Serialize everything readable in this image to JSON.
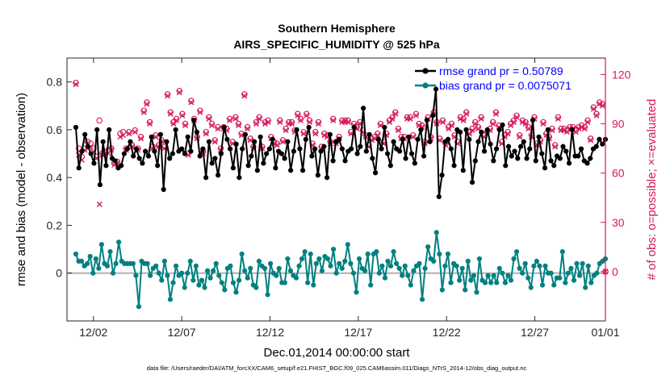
{
  "chart_data": {
    "type": "line",
    "title": "Southern Hemisphere",
    "subtitle": "AIRS_SPECIFIC_HUMIDITY @ 525 hPa",
    "xlabel": "Dec.01,2014 00:00:00 start",
    "ylabel_left": "rmse and bias (model - observation)",
    "ylabel_right": "# of obs: o=possible; ×=evaluated",
    "xlim": [
      0.5,
      31.0
    ],
    "ylim_left": [
      -0.2,
      0.9
    ],
    "ylim_right": [
      -30,
      130
    ],
    "x_ticks": [
      {
        "x": 2,
        "label": "12/02"
      },
      {
        "x": 7,
        "label": "12/07"
      },
      {
        "x": 12,
        "label": "12/12"
      },
      {
        "x": 17,
        "label": "12/17"
      },
      {
        "x": 22,
        "label": "12/22"
      },
      {
        "x": 27,
        "label": "12/27"
      },
      {
        "x": 31,
        "label": "01/01"
      }
    ],
    "y_ticks_left": [
      {
        "v": 0,
        "label": "0"
      },
      {
        "v": 0.2,
        "label": "0.2"
      },
      {
        "v": 0.4,
        "label": "0.4"
      },
      {
        "v": 0.6,
        "label": "0.6"
      },
      {
        "v": 0.8,
        "label": "0.8"
      }
    ],
    "y_ticks_right": [
      {
        "v": 0,
        "label": "0"
      },
      {
        "v": 30,
        "label": "30"
      },
      {
        "v": 60,
        "label": "60"
      },
      {
        "v": 90,
        "label": "90"
      },
      {
        "v": 120,
        "label": "120"
      }
    ],
    "grid": false,
    "legend_position": "top-right",
    "colors": {
      "rmse": "#000000",
      "bias": "#008080",
      "obs": "#d6185f",
      "legend_text": "#0000ff",
      "zero_line": "#b0b0b0",
      "right_axis": "#d6185f"
    },
    "series": [
      {
        "name": "rmse grand pr = 0.50789",
        "axis": "left",
        "values": [
          0.61,
          0.44,
          0.51,
          0.58,
          0.53,
          0.5,
          0.46,
          0.6,
          0.37,
          0.55,
          0.45,
          0.6,
          0.48,
          0.47,
          0.44,
          0.45,
          0.5,
          0.52,
          0.55,
          0.49,
          0.52,
          0.48,
          0.46,
          0.51,
          0.49,
          0.57,
          0.51,
          0.45,
          0.58,
          0.35,
          0.55,
          0.48,
          0.5,
          0.6,
          0.51,
          0.52,
          0.5,
          0.57,
          0.51,
          0.64,
          0.59,
          0.49,
          0.52,
          0.4,
          0.55,
          0.46,
          0.48,
          0.41,
          0.5,
          0.61,
          0.56,
          0.52,
          0.44,
          0.54,
          0.4,
          0.52,
          0.58,
          0.45,
          0.49,
          0.55,
          0.43,
          0.57,
          0.46,
          0.5,
          0.52,
          0.56,
          0.44,
          0.51,
          0.5,
          0.48,
          0.55,
          0.43,
          0.51,
          0.6,
          0.52,
          0.43,
          0.56,
          0.61,
          0.49,
          0.52,
          0.41,
          0.51,
          0.53,
          0.4,
          0.58,
          0.47,
          0.55,
          0.56,
          0.52,
          0.47,
          0.51,
          0.52,
          0.61,
          0.5,
          0.53,
          0.69,
          0.51,
          0.58,
          0.48,
          0.42,
          0.56,
          0.52,
          0.61,
          0.5,
          0.45,
          0.55,
          0.52,
          0.51,
          0.56,
          0.48,
          0.57,
          0.5,
          0.46,
          0.56,
          0.6,
          0.49,
          0.64,
          0.55,
          0.66,
          0.77,
          0.32,
          0.41,
          0.55,
          0.56,
          0.52,
          0.45,
          0.6,
          0.59,
          0.43,
          0.6,
          0.56,
          0.38,
          0.47,
          0.55,
          0.59,
          0.51,
          0.6,
          0.54,
          0.47,
          0.52,
          0.6,
          0.62,
          0.45,
          0.53,
          0.49,
          0.51,
          0.48,
          0.53,
          0.55,
          0.48,
          0.52,
          0.64,
          0.47,
          0.57,
          0.5,
          0.44,
          0.6,
          0.47,
          0.45,
          0.49,
          0.48,
          0.53,
          0.51,
          0.46,
          0.6,
          0.49,
          0.49,
          0.52,
          0.47,
          0.46,
          0.48,
          0.52,
          0.53,
          0.56,
          0.54,
          0.56
        ]
      },
      {
        "name": "bias grand pr = 0.0075071",
        "axis": "left",
        "values": [
          0.08,
          0.05,
          0.05,
          0.03,
          0.04,
          0.07,
          0.0,
          0.06,
          0.02,
          0.12,
          0.04,
          0.03,
          0.09,
          0.0,
          0.04,
          0.13,
          0.05,
          0.04,
          0.04,
          0.04,
          0.04,
          -0.01,
          -0.14,
          0.05,
          0.04,
          0.04,
          -0.01,
          0.02,
          0.03,
          0.0,
          -0.03,
          0.05,
          -0.01,
          -0.11,
          -0.04,
          0.03,
          -0.01,
          0.0,
          -0.06,
          0.0,
          0.05,
          -0.03,
          0.03,
          -0.05,
          -0.03,
          -0.06,
          0.01,
          -0.02,
          0.01,
          0.04,
          -0.01,
          -0.04,
          -0.07,
          0.02,
          0.03,
          -0.04,
          -0.08,
          -0.03,
          0.08,
          0.01,
          -0.02,
          0.02,
          -0.05,
          -0.06,
          0.05,
          0.03,
          0.02,
          -0.09,
          0.04,
          0.0,
          -0.01,
          0.02,
          -0.04,
          -0.04,
          0.06,
          0.01,
          -0.01,
          -0.02,
          0.03,
          0.06,
          0.09,
          -0.04,
          0.08,
          -0.05,
          0.04,
          0.06,
          0.01,
          0.07,
          0.06,
          0.03,
          0.1,
          0.0,
          0.04,
          0.02,
          0.05,
          0.12,
          0.04,
          0.0,
          -0.08,
          0.06,
          0.02,
          0.01,
          0.08,
          -0.05,
          0.08,
          0.09,
          0.0,
          0.03,
          -0.02,
          0.05,
          0.03,
          0.09,
          0.04,
          0.02,
          -0.01,
          0.03,
          -0.01,
          -0.05,
          0.01,
          0.03,
          0.04,
          -0.11,
          0.02,
          0.11,
          0.06,
          0.05,
          0.17,
          0.08,
          -0.07,
          0.03,
          0.08,
          -0.04,
          0.04,
          0.03,
          -0.03,
          0.02,
          -0.07,
          0.05,
          -0.03,
          -0.01,
          -0.08,
          0.06,
          -0.03,
          -0.04,
          -0.01,
          -0.04,
          -0.01,
          -0.04,
          0.02,
          0.0,
          -0.04,
          -0.01,
          -0.03,
          0.06,
          0.09,
          0.02,
          0.0,
          0.04,
          -0.02,
          -0.06,
          0.03,
          0.05,
          0.03,
          -0.05,
          0.03,
          0.0,
          0.0,
          -0.05,
          -0.02,
          -0.02,
          0.09,
          -0.04,
          0.0,
          0.02,
          -0.03,
          0.04,
          -0.01,
          0.04,
          -0.06,
          0.03,
          -0.04,
          -0.01,
          0.0,
          0.04,
          0.05,
          0.06
        ]
      },
      {
        "name": "possible",
        "axis": "right",
        "values": [
          115,
          75,
          70,
          75,
          79,
          78,
          75,
          70,
          92,
          72,
          73,
          74,
          75,
          66,
          67,
          84,
          85,
          75,
          85,
          77,
          86,
          75,
          82,
          98,
          103,
          91,
          76,
          83,
          77,
          80,
          76,
          108,
          97,
          91,
          93,
          110,
          96,
          90,
          72,
          104,
          93,
          82,
          98,
          73,
          85,
          94,
          90,
          80,
          88,
          75,
          88,
          87,
          93,
          79,
          94,
          90,
          84,
          108,
          88,
          81,
          76,
          91,
          94,
          76,
          91,
          92,
          82,
          79,
          78,
          92,
          80,
          87,
          91,
          91,
          86,
          96,
          93,
          85,
          96,
          92,
          78,
          85,
          91,
          76,
          84,
          83,
          79,
          93,
          79,
          82,
          92,
          92,
          92,
          85,
          90,
          88,
          91,
          86,
          83,
          77,
          81,
          82,
          84,
          90,
          79,
          84,
          92,
          94,
          97,
          87,
          82,
          82,
          94,
          94,
          83,
          96,
          90,
          89,
          79,
          94,
          82,
          97,
          91,
          81,
          92,
          78,
          88,
          90,
          83,
          79,
          94,
          93,
          97,
          85,
          87,
          91,
          88,
          94,
          83,
          85,
          87,
          91,
          97,
          89,
          79,
          83,
          85,
          90,
          92,
          95,
          83,
          92,
          91,
          88,
          83,
          94,
          78,
          80,
          91,
          84,
          82,
          87,
          77,
          94,
          87,
          87,
          86,
          88,
          88,
          86,
          88,
          89,
          88,
          92,
          81,
          100,
          96,
          103,
          102,
          0
        ]
      },
      {
        "name": "evaluated",
        "axis": "right",
        "values": [
          114,
          71,
          68,
          74,
          77,
          76,
          73,
          69,
          41,
          71,
          72,
          72,
          74,
          65,
          66,
          82,
          83,
          74,
          84,
          76,
          85,
          74,
          81,
          97,
          102,
          90,
          75,
          82,
          76,
          79,
          75,
          107,
          96,
          90,
          92,
          109,
          95,
          89,
          71,
          103,
          92,
          81,
          97,
          72,
          84,
          93,
          89,
          79,
          87,
          74,
          87,
          86,
          92,
          78,
          93,
          89,
          83,
          107,
          87,
          80,
          75,
          90,
          93,
          75,
          90,
          91,
          81,
          78,
          77,
          91,
          79,
          86,
          90,
          90,
          85,
          95,
          92,
          84,
          95,
          91,
          77,
          84,
          90,
          75,
          83,
          82,
          78,
          92,
          78,
          81,
          91,
          91,
          91,
          84,
          89,
          87,
          90,
          85,
          82,
          76,
          80,
          81,
          83,
          89,
          78,
          83,
          91,
          93,
          96,
          86,
          81,
          81,
          93,
          93,
          82,
          95,
          89,
          88,
          78,
          93,
          81,
          96,
          90,
          80,
          91,
          77,
          87,
          89,
          82,
          78,
          93,
          92,
          96,
          84,
          86,
          90,
          87,
          93,
          82,
          84,
          86,
          90,
          96,
          88,
          78,
          82,
          84,
          89,
          91,
          94,
          82,
          91,
          90,
          87,
          82,
          93,
          77,
          79,
          90,
          83,
          81,
          86,
          76,
          93,
          86,
          86,
          85,
          87,
          87,
          85,
          87,
          88,
          87,
          91,
          80,
          99,
          95,
          102,
          101,
          0
        ]
      }
    ],
    "footer": "data file: /Users/raeder/DAI/ATM_forcXX/CAM6_setup/f.e21.FHIST_BGC.f09_025.CAM6assim.011/Diags_NTrS_2014-12/obs_diag_output.nc"
  }
}
